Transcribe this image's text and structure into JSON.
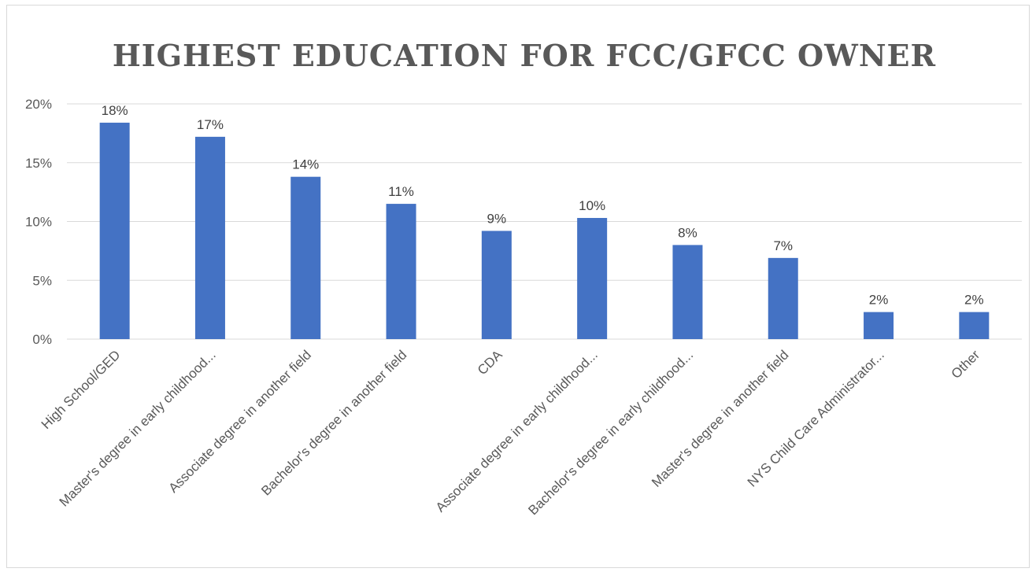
{
  "chart_data": {
    "type": "bar",
    "title": "HIGHEST EDUCATION FOR FCC/GFCC OWNER",
    "categories": [
      "High School/GED",
      "Master's degree in early childhood...",
      "Associate degree in another field",
      "Bachelor's degree in another field",
      "CDA",
      "Associate degree in early childhood...",
      "Bachelor's degree in early childhood...",
      "Master's degree in another field",
      "NYS Child Care Administrator...",
      "Other"
    ],
    "values": [
      18.4,
      17.2,
      13.8,
      11.5,
      9.2,
      10.3,
      8.0,
      6.9,
      2.3,
      2.3
    ],
    "data_labels": [
      "18%",
      "17%",
      "14%",
      "11%",
      "9%",
      "10%",
      "8%",
      "7%",
      "2%",
      "2%"
    ],
    "ylim": [
      0,
      20
    ],
    "yticks": [
      "0%",
      "5%",
      "10%",
      "15%",
      "20%"
    ],
    "xlabel": "",
    "ylabel": "",
    "grid": true,
    "bar_color": "#4472C4",
    "grid_color": "#d9d9d9"
  }
}
